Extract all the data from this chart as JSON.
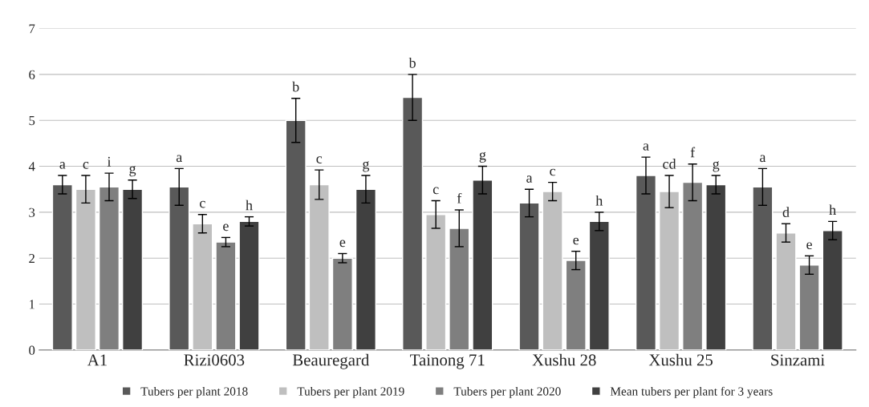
{
  "chart_data": {
    "type": "bar",
    "categories": [
      "A1",
      "Rizi0603",
      "Beauregard",
      "Tainong 71",
      "Xushu 28",
      "Xushu 25",
      "Sinzami"
    ],
    "series": [
      {
        "name": "Tubers per plant 2018",
        "color": "#595959",
        "values": [
          3.6,
          3.55,
          5.0,
          5.5,
          3.2,
          3.8,
          3.55
        ],
        "errors": [
          0.2,
          0.4,
          0.48,
          0.5,
          0.3,
          0.4,
          0.4
        ],
        "value_labels": [
          "a",
          "a",
          "b",
          "b",
          "a",
          "a",
          "a"
        ]
      },
      {
        "name": "Tubers per plant 2019",
        "color": "#bfbfbf",
        "values": [
          3.5,
          2.75,
          3.6,
          2.95,
          3.45,
          3.45,
          2.55
        ],
        "errors": [
          0.3,
          0.2,
          0.32,
          0.3,
          0.2,
          0.35,
          0.2
        ],
        "value_labels": [
          "c",
          "c",
          "c",
          "c",
          "c",
          "cd",
          "d"
        ]
      },
      {
        "name": "Tubers per plant 2020",
        "color": "#7f7f7f",
        "values": [
          3.55,
          2.35,
          2.0,
          2.65,
          1.95,
          3.65,
          1.85
        ],
        "errors": [
          0.3,
          0.1,
          0.1,
          0.4,
          0.2,
          0.4,
          0.2
        ],
        "value_labels": [
          "i",
          "e",
          "e",
          "f",
          "e",
          "f",
          "e"
        ]
      },
      {
        "name": "Mean tubers per plant for 3 years",
        "color": "#404040",
        "values": [
          3.5,
          2.8,
          3.5,
          3.7,
          2.8,
          3.6,
          2.6
        ],
        "errors": [
          0.2,
          0.1,
          0.3,
          0.3,
          0.2,
          0.2,
          0.2
        ],
        "value_labels": [
          "g",
          "h",
          "g",
          "g",
          "h",
          "g",
          "h"
        ]
      }
    ],
    "ylim": [
      0,
      7
    ],
    "yticks": [
      0,
      1,
      2,
      3,
      4,
      5,
      6,
      7
    ],
    "grid": "y",
    "legend": "bottom"
  }
}
